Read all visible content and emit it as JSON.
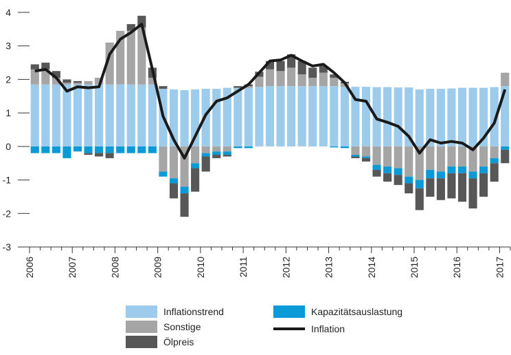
{
  "chart_data": {
    "type": "bar",
    "stacked": true,
    "categories": [
      "2006",
      null,
      null,
      null,
      "2007",
      null,
      null,
      null,
      "2008",
      null,
      null,
      null,
      "2009",
      null,
      null,
      null,
      "2010",
      null,
      null,
      null,
      "2011",
      null,
      null,
      null,
      "2012",
      null,
      null,
      null,
      "2013",
      null,
      null,
      null,
      "2014",
      null,
      null,
      null,
      "2015",
      null,
      null,
      null,
      "2016",
      null,
      null,
      null,
      "2017"
    ],
    "ylim": [
      -3,
      4
    ],
    "yticks": [
      -3,
      -2,
      -1,
      0,
      1,
      2,
      3,
      4
    ],
    "series": [
      {
        "name": "Inflationstrend",
        "type": "bar",
        "color": "#9dcbeb",
        "values": [
          1.85,
          1.85,
          1.85,
          1.85,
          1.85,
          1.85,
          1.85,
          1.85,
          1.85,
          1.85,
          1.85,
          1.85,
          1.72,
          1.7,
          1.68,
          1.7,
          1.72,
          1.72,
          1.75,
          1.75,
          1.75,
          1.78,
          1.8,
          1.8,
          1.8,
          1.8,
          1.8,
          1.8,
          1.8,
          1.78,
          1.78,
          1.78,
          1.77,
          1.77,
          1.76,
          1.76,
          1.7,
          1.72,
          1.72,
          1.73,
          1.75,
          1.75,
          1.75,
          1.77,
          1.8
        ]
      },
      {
        "name": "Sonstige",
        "type": "bar",
        "color": "#a5a5a5",
        "values": [
          0.45,
          0.45,
          0.2,
          0.05,
          0.05,
          0.1,
          0.2,
          1.25,
          1.6,
          1.6,
          1.7,
          0.2,
          -0.75,
          -0.95,
          -1.2,
          -0.5,
          -0.2,
          -0.15,
          -0.15,
          0,
          0.05,
          0.3,
          0.5,
          0.45,
          0.55,
          0.35,
          0.25,
          0.4,
          0.25,
          0.1,
          -0.25,
          -0.3,
          -0.55,
          -0.6,
          -0.65,
          -0.9,
          -1.0,
          -0.7,
          -0.75,
          -0.6,
          -0.6,
          -0.75,
          -0.6,
          -0.35,
          0.4
        ]
      },
      {
        "name": "Kapazitätsauslastung",
        "type": "bar",
        "color": "#0b9ad8",
        "values": [
          -0.2,
          -0.2,
          -0.2,
          -0.35,
          -0.15,
          -0.2,
          -0.2,
          -0.2,
          -0.2,
          -0.2,
          -0.2,
          -0.2,
          -0.15,
          -0.15,
          -0.2,
          -0.15,
          -0.1,
          -0.1,
          -0.1,
          -0.05,
          -0.05,
          0,
          0,
          0,
          0,
          0,
          0,
          0,
          -0.03,
          -0.05,
          -0.05,
          -0.05,
          -0.15,
          -0.2,
          -0.2,
          -0.2,
          -0.25,
          -0.25,
          -0.2,
          -0.2,
          -0.2,
          -0.2,
          -0.2,
          -0.15,
          -0.1
        ]
      },
      {
        "name": "Ölpreis",
        "type": "bar",
        "color": "#575757",
        "values": [
          0.15,
          0.2,
          0.2,
          0.1,
          0.05,
          -0.05,
          -0.1,
          -0.15,
          0,
          0.2,
          0.35,
          0.3,
          0.08,
          -0.45,
          -0.7,
          -0.7,
          -0.45,
          -0.1,
          -0.05,
          0.05,
          0.05,
          0.15,
          0.25,
          0.3,
          0.4,
          0.4,
          0.3,
          0.2,
          0.1,
          0.05,
          -0.05,
          -0.1,
          -0.2,
          -0.25,
          -0.3,
          -0.3,
          -0.65,
          -0.55,
          -0.65,
          -0.75,
          -0.85,
          -0.9,
          -0.7,
          -0.55,
          -0.4
        ]
      },
      {
        "name": "Inflation",
        "type": "line",
        "color": "#1a1a1a",
        "values": [
          2.25,
          2.3,
          2.05,
          1.65,
          1.78,
          1.75,
          1.78,
          2.75,
          3.2,
          3.4,
          3.65,
          2.3,
          0.9,
          0.2,
          -0.35,
          0.3,
          0.95,
          1.35,
          1.45,
          1.65,
          1.85,
          2.2,
          2.55,
          2.58,
          2.72,
          2.55,
          2.4,
          2.45,
          2.2,
          1.9,
          1.4,
          1.35,
          0.82,
          0.72,
          0.6,
          0.3,
          -0.2,
          0.2,
          0.1,
          0.15,
          0.1,
          -0.1,
          0.25,
          0.7,
          1.7
        ]
      }
    ]
  }
}
